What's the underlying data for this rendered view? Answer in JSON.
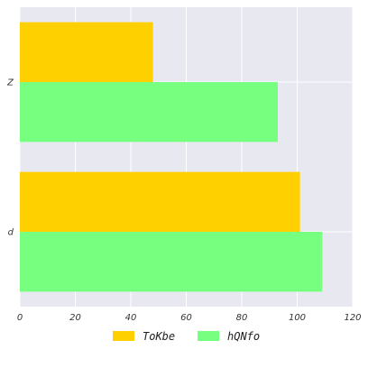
{
  "chart_data": {
    "type": "bar",
    "orientation": "horizontal",
    "categories": [
      "Z",
      "d"
    ],
    "series": [
      {
        "name": "ToKbe",
        "color": "#ffd000",
        "values": [
          48,
          101
        ]
      },
      {
        "name": "hQNfo",
        "color": "#77ff80",
        "values": [
          93,
          109
        ]
      }
    ],
    "xlim": [
      0,
      120
    ],
    "xticks": [
      "0",
      "20",
      "40",
      "60",
      "80",
      "100",
      "120"
    ],
    "grid": true,
    "background": "#e8e8f0",
    "legend_position": "bottom"
  }
}
